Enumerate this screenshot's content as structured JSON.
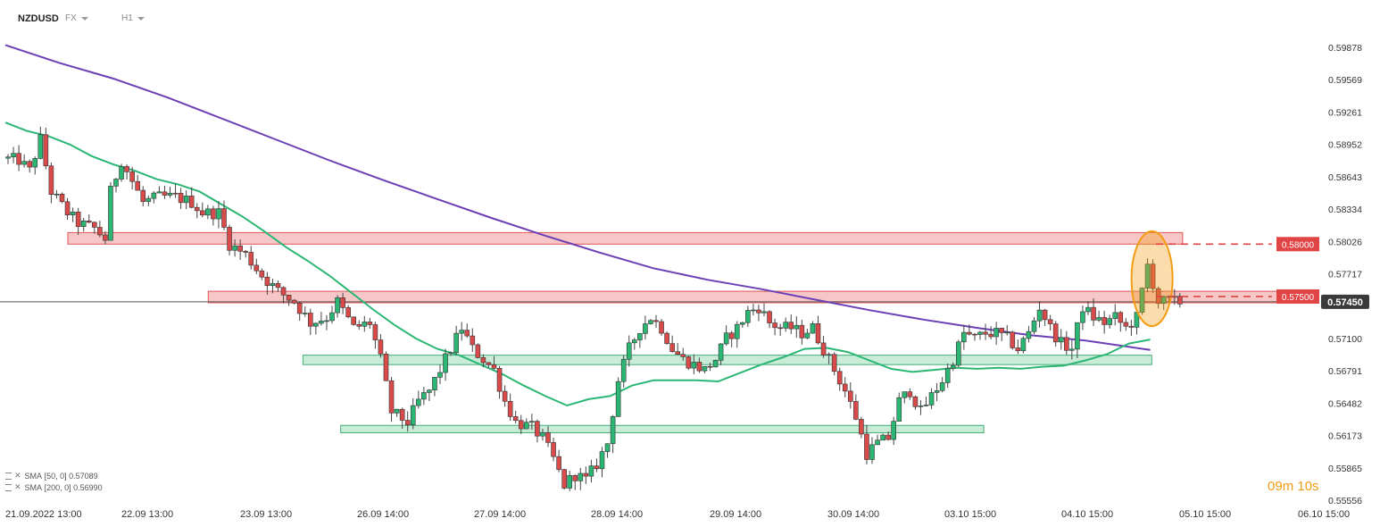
{
  "header": {
    "symbol": "NZDUSD",
    "market": "FX",
    "timeframe": "H1"
  },
  "legend": [
    {
      "label": "SMA",
      "params": "[50, 0]",
      "value": "0.57089"
    },
    {
      "label": "SMA",
      "params": "[200, 0]",
      "value": "0.56990"
    }
  ],
  "timer": {
    "minutes": "09",
    "m_label": "m",
    "seconds": "10",
    "s_label": "s"
  },
  "colors": {
    "bull": "#2bb673",
    "bear": "#d94a4a",
    "wick": "#444444",
    "sma50": "#2bb673",
    "sma200": "#6b3fb5",
    "resistance_fill": "#f7c6c6",
    "resistance_stroke": "#e05656",
    "support_fill": "#c9ecd9",
    "support_stroke": "#3fae74",
    "highlight": "#f39c12",
    "price_label": "#3a3a3a",
    "level_label": "#e04444"
  },
  "chart_data": {
    "type": "candlestick",
    "instrument": "NZDUSD",
    "timeframe": "H1",
    "ylim": [
      0.5545,
      0.6005
    ],
    "y_ticks": [
      "0.59878",
      "0.59569",
      "0.59261",
      "0.58952",
      "0.58643",
      "0.58334",
      "0.58026",
      "0.57717",
      "0.57450",
      "0.57100",
      "0.56791",
      "0.56482",
      "0.56173",
      "0.55865",
      "0.55556"
    ],
    "x_ticks": [
      "21.09.2022  13:00",
      "22.09  13:00",
      "23.09  13:00",
      "26.09  14:00",
      "27.09  14:00",
      "28.09  14:00",
      "29.09  14:00",
      "30.09  14:00",
      "03.10  15:00",
      "04.10  15:00",
      "05.10  15:00",
      "06.10  15:00"
    ],
    "current_price": "0.57450",
    "levels": [
      {
        "label": "0.58000",
        "value": 0.58,
        "style": "dashed"
      },
      {
        "label": "0.57500",
        "value": 0.575,
        "style": "dashed"
      }
    ],
    "resistance_zones": [
      {
        "from_bar": 0,
        "to_bar": 218,
        "low": 0.58,
        "high": 0.5811
      },
      {
        "from_bar": 26,
        "to_bar": 218,
        "low": 0.5744,
        "high": 0.5755
      }
    ],
    "support_zones": [
      {
        "from_bar": 28,
        "to_bar": 206,
        "low": 0.5685,
        "high": 0.5694
      },
      {
        "from_bar": 35,
        "to_bar": 182,
        "low": 0.562,
        "high": 0.5627
      }
    ],
    "highlight": {
      "bar": 212,
      "low": 0.5726,
      "high": 0.5808
    },
    "anchors": [
      [
        0,
        0.5882
      ],
      [
        3,
        0.588
      ],
      [
        5,
        0.587
      ],
      [
        7,
        0.59
      ],
      [
        9,
        0.585
      ],
      [
        12,
        0.583
      ],
      [
        14,
        0.582
      ],
      [
        17,
        0.5815
      ],
      [
        19,
        0.5805
      ],
      [
        20,
        0.585
      ],
      [
        22,
        0.588
      ],
      [
        24,
        0.586
      ],
      [
        26,
        0.584
      ],
      [
        29,
        0.5845
      ],
      [
        32,
        0.5845
      ],
      [
        35,
        0.584
      ],
      [
        37,
        0.583
      ],
      [
        40,
        0.583
      ],
      [
        42,
        0.58
      ],
      [
        45,
        0.579
      ],
      [
        48,
        0.577
      ],
      [
        51,
        0.5755
      ],
      [
        54,
        0.5745
      ],
      [
        57,
        0.5725
      ],
      [
        60,
        0.573
      ],
      [
        62,
        0.5745
      ],
      [
        65,
        0.572
      ],
      [
        68,
        0.5725
      ],
      [
        70,
        0.569
      ],
      [
        72,
        0.564
      ],
      [
        75,
        0.563
      ],
      [
        77,
        0.565
      ],
      [
        79,
        0.566
      ],
      [
        81,
        0.568
      ],
      [
        83,
        0.57
      ],
      [
        85,
        0.572
      ],
      [
        87,
        0.57
      ],
      [
        89,
        0.569
      ],
      [
        91,
        0.568
      ],
      [
        93,
        0.565
      ],
      [
        95,
        0.563
      ],
      [
        98,
        0.5625
      ],
      [
        100,
        0.5615
      ],
      [
        102,
        0.5595
      ],
      [
        104,
        0.557
      ],
      [
        106,
        0.558
      ],
      [
        108,
        0.5575
      ],
      [
        110,
        0.559
      ],
      [
        112,
        0.561
      ],
      [
        114,
        0.567
      ],
      [
        116,
        0.57
      ],
      [
        118,
        0.572
      ],
      [
        120,
        0.573
      ],
      [
        122,
        0.572
      ],
      [
        124,
        0.57
      ],
      [
        126,
        0.569
      ],
      [
        128,
        0.5685
      ],
      [
        130,
        0.568
      ],
      [
        132,
        0.569
      ],
      [
        134,
        0.571
      ],
      [
        136,
        0.572
      ],
      [
        138,
        0.5735
      ],
      [
        140,
        0.574
      ],
      [
        142,
        0.5725
      ],
      [
        144,
        0.572
      ],
      [
        146,
        0.572
      ],
      [
        148,
        0.5715
      ],
      [
        150,
        0.572
      ],
      [
        152,
        0.57
      ],
      [
        154,
        0.568
      ],
      [
        156,
        0.566
      ],
      [
        158,
        0.5635
      ],
      [
        160,
        0.56
      ],
      [
        162,
        0.561
      ],
      [
        164,
        0.5615
      ],
      [
        166,
        0.565
      ],
      [
        168,
        0.566
      ],
      [
        170,
        0.564
      ],
      [
        172,
        0.5655
      ],
      [
        174,
        0.567
      ],
      [
        176,
        0.569
      ],
      [
        178,
        0.5715
      ],
      [
        180,
        0.571
      ],
      [
        182,
        0.5715
      ],
      [
        184,
        0.5715
      ],
      [
        186,
        0.571
      ],
      [
        188,
        0.57
      ],
      [
        190,
        0.5715
      ],
      [
        192,
        0.574
      ],
      [
        194,
        0.572
      ],
      [
        196,
        0.5705
      ],
      [
        198,
        0.57
      ],
      [
        200,
        0.574
      ],
      [
        202,
        0.573
      ],
      [
        204,
        0.5725
      ],
      [
        206,
        0.573
      ],
      [
        208,
        0.572
      ],
      [
        210,
        0.573
      ],
      [
        212,
        0.578
      ],
      [
        214,
        0.5745
      ],
      [
        216,
        0.5745
      ],
      [
        218,
        0.5745
      ]
    ],
    "sma50": [
      [
        0,
        0.5916
      ],
      [
        4,
        0.5908
      ],
      [
        8,
        0.5903
      ],
      [
        12,
        0.5895
      ],
      [
        16,
        0.5884
      ],
      [
        20,
        0.5876
      ],
      [
        24,
        0.587
      ],
      [
        28,
        0.5862
      ],
      [
        32,
        0.5857
      ],
      [
        36,
        0.585
      ],
      [
        40,
        0.5838
      ],
      [
        44,
        0.5826
      ],
      [
        48,
        0.5812
      ],
      [
        52,
        0.5797
      ],
      [
        56,
        0.5784
      ],
      [
        60,
        0.577
      ],
      [
        64,
        0.5754
      ],
      [
        68,
        0.5738
      ],
      [
        72,
        0.5723
      ],
      [
        76,
        0.571
      ],
      [
        80,
        0.57
      ],
      [
        84,
        0.5694
      ],
      [
        88,
        0.5685
      ],
      [
        92,
        0.5676
      ],
      [
        96,
        0.5665
      ],
      [
        100,
        0.5655
      ],
      [
        104,
        0.5646
      ],
      [
        108,
        0.5652
      ],
      [
        112,
        0.5655
      ],
      [
        116,
        0.5665
      ],
      [
        120,
        0.567
      ],
      [
        124,
        0.567
      ],
      [
        128,
        0.567
      ],
      [
        132,
        0.5669
      ],
      [
        136,
        0.5677
      ],
      [
        140,
        0.5685
      ],
      [
        144,
        0.5692
      ],
      [
        148,
        0.57
      ],
      [
        152,
        0.5701
      ],
      [
        156,
        0.5697
      ],
      [
        160,
        0.5689
      ],
      [
        164,
        0.5681
      ],
      [
        168,
        0.5678
      ],
      [
        172,
        0.568
      ],
      [
        176,
        0.5682
      ],
      [
        180,
        0.5681
      ],
      [
        184,
        0.5682
      ],
      [
        188,
        0.5681
      ],
      [
        192,
        0.5683
      ],
      [
        196,
        0.5684
      ],
      [
        200,
        0.5689
      ],
      [
        204,
        0.5695
      ],
      [
        208,
        0.5705
      ],
      [
        212,
        0.5709
      ]
    ],
    "sma200": [
      [
        0,
        0.599
      ],
      [
        10,
        0.5973
      ],
      [
        20,
        0.5958
      ],
      [
        30,
        0.594
      ],
      [
        40,
        0.592
      ],
      [
        50,
        0.59
      ],
      [
        60,
        0.588
      ],
      [
        70,
        0.5861
      ],
      [
        80,
        0.5843
      ],
      [
        90,
        0.5825
      ],
      [
        100,
        0.5808
      ],
      [
        110,
        0.5792
      ],
      [
        120,
        0.5777
      ],
      [
        130,
        0.5766
      ],
      [
        140,
        0.5757
      ],
      [
        150,
        0.5747
      ],
      [
        160,
        0.5737
      ],
      [
        170,
        0.5728
      ],
      [
        180,
        0.572
      ],
      [
        190,
        0.5713
      ],
      [
        200,
        0.5708
      ],
      [
        208,
        0.5702
      ],
      [
        212,
        0.5699
      ]
    ]
  }
}
